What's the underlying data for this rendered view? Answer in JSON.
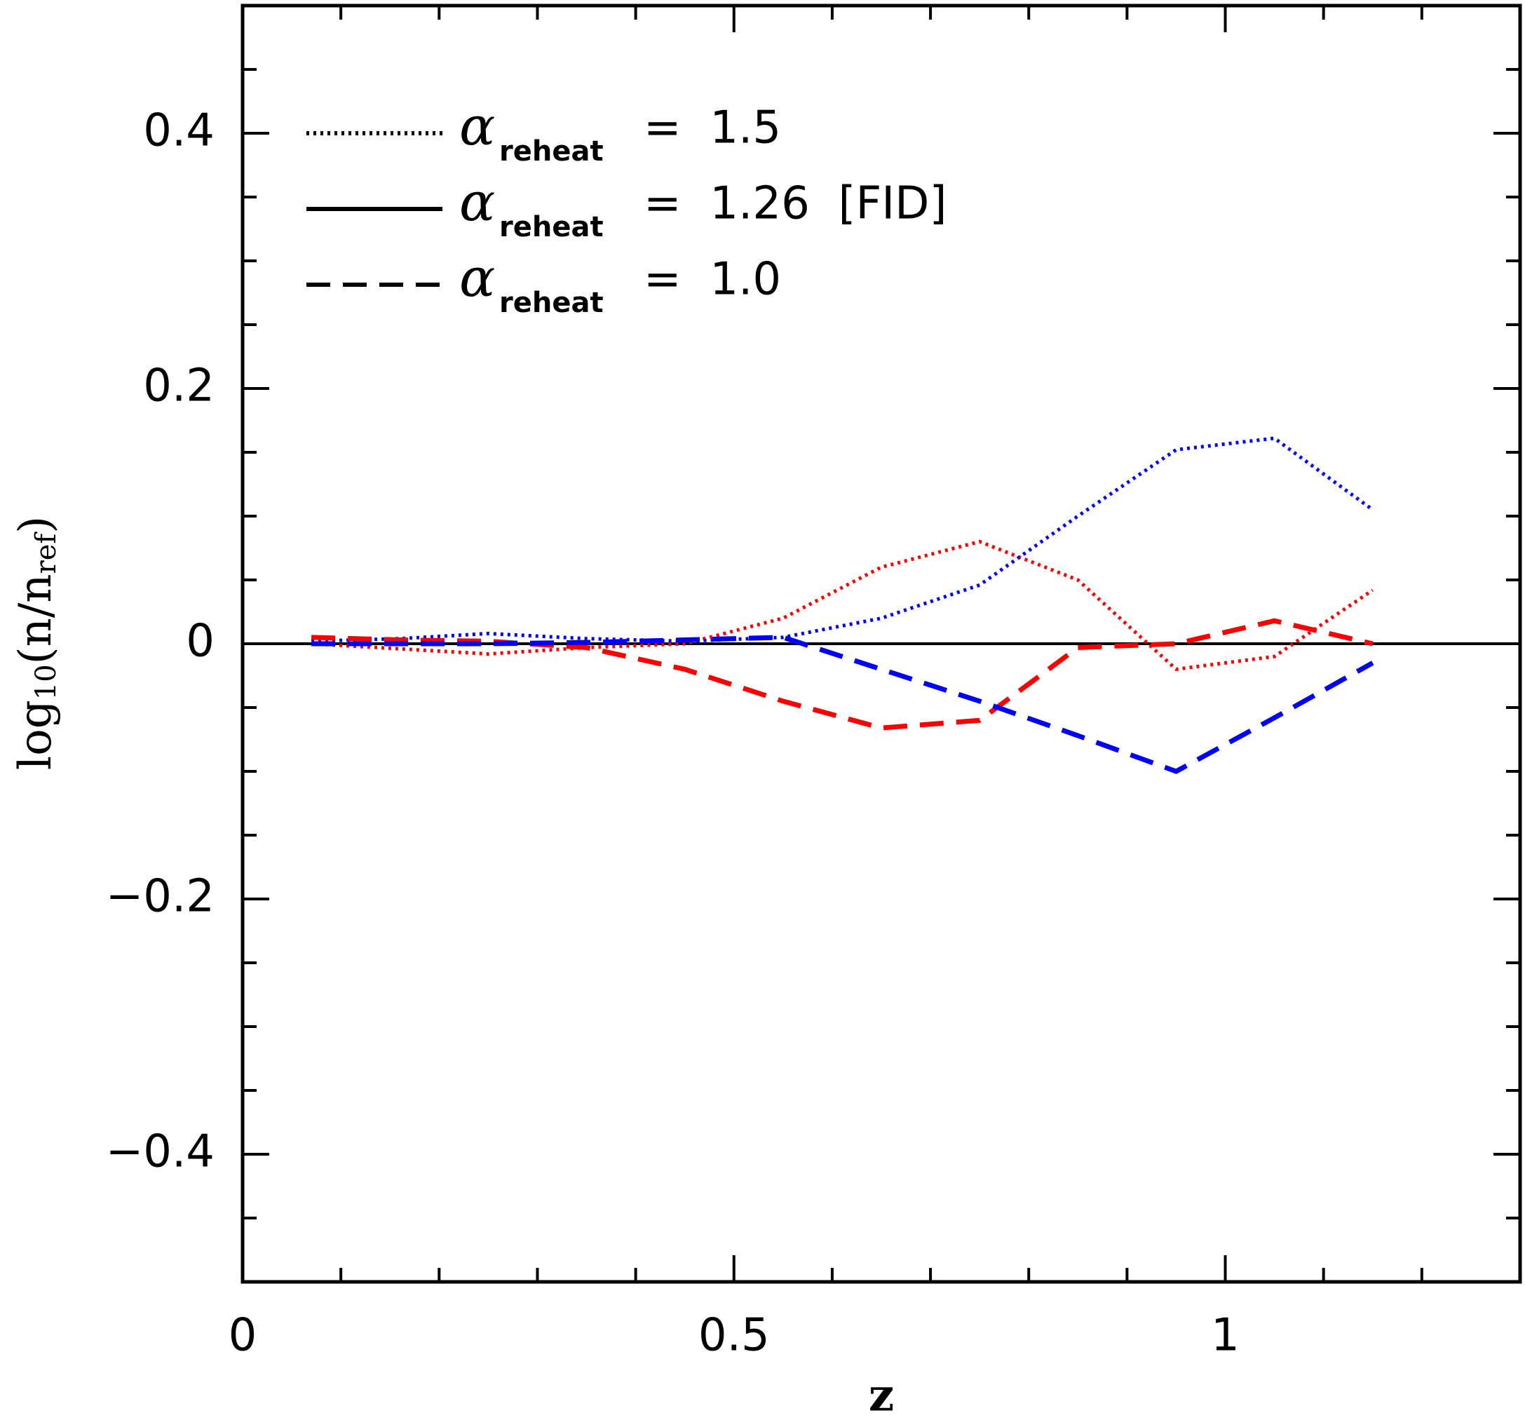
{
  "chart_data": {
    "type": "line",
    "xlabel": "z",
    "ylabel_parts": [
      {
        "text": "log"
      },
      {
        "text": "10",
        "sub": true
      },
      {
        "text": "(n/n"
      },
      {
        "text": "ref",
        "sub": true
      },
      {
        "text": ")"
      }
    ],
    "xlim": [
      0,
      1.3
    ],
    "ylim": [
      -0.5,
      0.5
    ],
    "xticks": [
      0,
      0.5,
      1
    ],
    "yticks": [
      {
        "value": -0.4,
        "label": "−0.4"
      },
      {
        "value": -0.2,
        "label": "−0.2"
      },
      0,
      0.2,
      0.4
    ],
    "xminorticks": [
      0.1,
      0.2,
      0.3,
      0.4,
      0.6,
      0.7,
      0.8,
      0.9,
      1.1,
      1.2
    ],
    "yminorticks": [
      -0.45,
      -0.35,
      -0.3,
      -0.25,
      -0.15,
      -0.1,
      -0.05,
      0.05,
      0.1,
      0.15,
      0.25,
      0.3,
      0.35,
      0.45
    ],
    "hline": {
      "y": 0,
      "color": "#000000"
    },
    "series": [
      {
        "color": "#ff0000",
        "dash": "dotted",
        "x": [
          0.07,
          0.16,
          0.25,
          0.35,
          0.45,
          0.55,
          0.65,
          0.75,
          0.85,
          0.95,
          1.05,
          1.15
        ],
        "values": [
          0.0,
          -0.004,
          -0.008,
          -0.003,
          0.0,
          0.02,
          0.06,
          0.08,
          0.05,
          -0.02,
          -0.01,
          0.042
        ]
      },
      {
        "color": "#0000ff",
        "dash": "dotted",
        "x": [
          0.07,
          0.16,
          0.25,
          0.35,
          0.45,
          0.55,
          0.65,
          0.75,
          0.85,
          0.95,
          1.05,
          1.15
        ],
        "values": [
          0.002,
          0.004,
          0.008,
          0.004,
          0.002,
          0.005,
          0.02,
          0.046,
          0.1,
          0.152,
          0.161,
          0.105
        ]
      },
      {
        "color": "#ff0000",
        "dash": "dashed",
        "x": [
          0.07,
          0.16,
          0.25,
          0.35,
          0.45,
          0.55,
          0.65,
          0.75,
          0.85,
          0.95,
          1.05,
          1.15
        ],
        "values": [
          0.005,
          0.003,
          0.002,
          -0.003,
          -0.02,
          -0.045,
          -0.066,
          -0.06,
          -0.003,
          0.0,
          0.018,
          0.0
        ]
      },
      {
        "color": "#0000ff",
        "dash": "dashed",
        "x": [
          0.07,
          0.16,
          0.25,
          0.35,
          0.45,
          0.55,
          0.65,
          0.75,
          0.85,
          0.95,
          1.05,
          1.15
        ],
        "values": [
          0.0,
          0.0,
          0.0,
          0.001,
          0.003,
          0.005,
          -0.02,
          -0.045,
          -0.072,
          -0.1,
          -0.058,
          -0.015
        ]
      }
    ],
    "legend": [
      {
        "symbol": "α",
        "sub": "reheat",
        "text": "=  1.5",
        "dash": "dotted"
      },
      {
        "symbol": "α",
        "sub": "reheat",
        "text": "=  1.26  [FID]",
        "dash": "solid"
      },
      {
        "symbol": "α",
        "sub": "reheat",
        "text": "=  1.0",
        "dash": "dashed"
      }
    ]
  }
}
